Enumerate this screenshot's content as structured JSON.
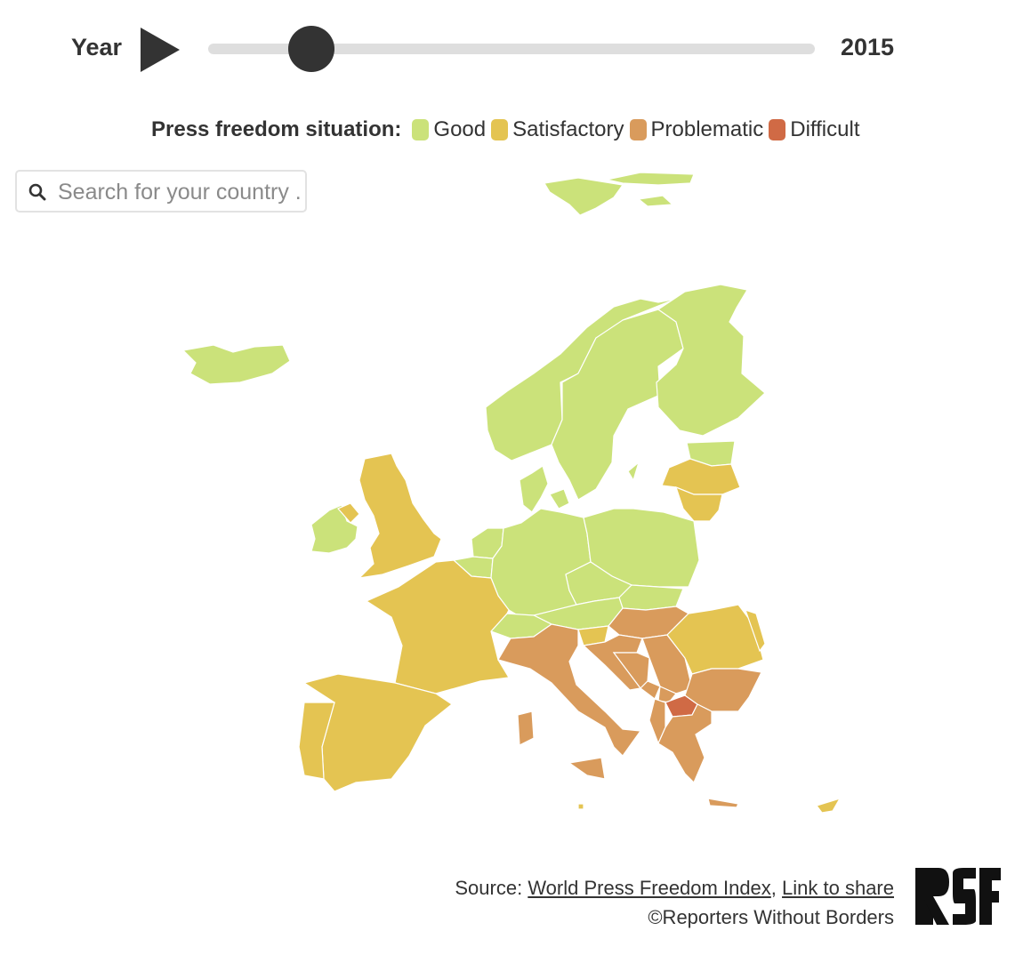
{
  "controls": {
    "year_label": "Year",
    "year": "2015",
    "slider_fraction": 0.17
  },
  "legend": {
    "title": "Press freedom situation:",
    "categories": [
      {
        "label": "Good",
        "color": "#cbe27a"
      },
      {
        "label": "Satisfactory",
        "color": "#e4c452"
      },
      {
        "label": "Problematic",
        "color": "#d99b5c"
      },
      {
        "label": "Difficult",
        "color": "#d06a45"
      }
    ]
  },
  "search": {
    "placeholder": "Search for your country ..."
  },
  "footer": {
    "source_prefix": "Source: ",
    "source_link": "World Press Freedom Index",
    "separator": ", ",
    "share_link": "Link to share",
    "copyright": "©Reporters Without Borders",
    "logo_text": "RSF"
  },
  "icons": {
    "play": "play-icon",
    "search": "search-icon"
  }
}
